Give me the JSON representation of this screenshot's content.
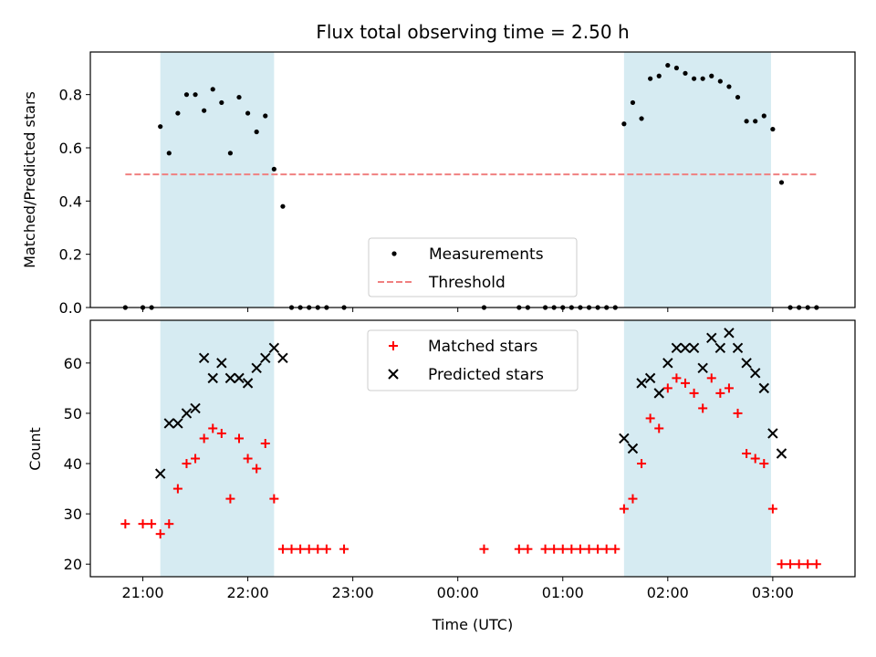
{
  "chart_data": [
    {
      "type": "scatter",
      "title": "Flux total observing time = 2.50 h",
      "xlabel": "",
      "ylabel": "Matched/Predicted stars",
      "xlim": [
        "20:30",
        "03:47"
      ],
      "ylim": [
        0,
        0.96
      ],
      "yticks": [
        0.0,
        0.2,
        0.4,
        0.6,
        0.8
      ],
      "ytick_labels": [
        "0.0",
        "0.2",
        "0.4",
        "0.6",
        "0.8"
      ],
      "legend_position": "lower-center",
      "shaded_intervals": [
        [
          "21:10",
          "22:15"
        ],
        [
          "01:35",
          "02:59"
        ]
      ],
      "shade_color": "#add8e6",
      "series": [
        {
          "name": "Measurements",
          "marker": "dot",
          "color": "#000000",
          "x": [
            "20:50",
            "21:00",
            "21:05",
            "21:10",
            "21:15",
            "21:20",
            "21:25",
            "21:30",
            "21:35",
            "21:40",
            "21:45",
            "21:50",
            "21:55",
            "22:00",
            "22:05",
            "22:10",
            "22:15",
            "22:20",
            "22:25",
            "22:30",
            "22:35",
            "22:40",
            "22:45",
            "22:55",
            "00:15",
            "00:35",
            "00:40",
            "00:50",
            "00:55",
            "01:00",
            "01:05",
            "01:10",
            "01:15",
            "01:20",
            "01:25",
            "01:30",
            "01:35",
            "01:40",
            "01:45",
            "01:50",
            "01:55",
            "02:00",
            "02:05",
            "02:10",
            "02:15",
            "02:20",
            "02:25",
            "02:30",
            "02:35",
            "02:40",
            "02:45",
            "02:50",
            "02:55",
            "03:00",
            "03:05",
            "03:10",
            "03:15",
            "03:20",
            "03:25"
          ],
          "y": [
            0,
            0,
            0,
            0.68,
            0.58,
            0.73,
            0.8,
            0.8,
            0.74,
            0.82,
            0.77,
            0.58,
            0.79,
            0.73,
            0.66,
            0.72,
            0.52,
            0.38,
            0,
            0,
            0,
            0,
            0,
            0,
            0,
            0,
            0,
            0,
            0,
            0,
            0,
            0,
            0,
            0,
            0,
            0,
            0.69,
            0.77,
            0.71,
            0.86,
            0.87,
            0.91,
            0.9,
            0.88,
            0.86,
            0.86,
            0.87,
            0.85,
            0.83,
            0.79,
            0.7,
            0.7,
            0.72,
            0.67,
            0.47,
            0,
            0,
            0,
            0
          ]
        },
        {
          "name": "Threshold",
          "style": "dashed",
          "color": "#f08080",
          "x": [
            "20:50",
            "03:25"
          ],
          "y": [
            0.5,
            0.5
          ]
        }
      ]
    },
    {
      "type": "scatter",
      "title": "",
      "xlabel": "Time (UTC)",
      "ylabel": "Count",
      "xlim": [
        "20:30",
        "03:47"
      ],
      "ylim": [
        17.5,
        68.5
      ],
      "yticks": [
        20,
        30,
        40,
        50,
        60
      ],
      "ytick_labels": [
        "20",
        "30",
        "40",
        "50",
        "60"
      ],
      "xticks": [
        "21:00",
        "22:00",
        "23:00",
        "00:00",
        "01:00",
        "02:00",
        "03:00"
      ],
      "xtick_labels": [
        "21:00",
        "22:00",
        "23:00",
        "00:00",
        "01:00",
        "02:00",
        "03:00"
      ],
      "legend_position": "upper-center",
      "shaded_intervals": [
        [
          "21:10",
          "22:15"
        ],
        [
          "01:35",
          "02:59"
        ]
      ],
      "shade_color": "#add8e6",
      "series": [
        {
          "name": "Matched stars",
          "marker": "plus",
          "color": "#ff0000",
          "x": [
            "20:50",
            "21:00",
            "21:05",
            "21:10",
            "21:15",
            "21:20",
            "21:25",
            "21:30",
            "21:35",
            "21:40",
            "21:45",
            "21:50",
            "21:55",
            "22:00",
            "22:05",
            "22:10",
            "22:15",
            "22:20",
            "22:25",
            "22:30",
            "22:35",
            "22:40",
            "22:45",
            "22:55",
            "00:15",
            "00:35",
            "00:40",
            "00:50",
            "00:55",
            "01:00",
            "01:05",
            "01:10",
            "01:15",
            "01:20",
            "01:25",
            "01:30",
            "01:35",
            "01:40",
            "01:45",
            "01:50",
            "01:55",
            "02:00",
            "02:05",
            "02:10",
            "02:15",
            "02:20",
            "02:25",
            "02:30",
            "02:35",
            "02:40",
            "02:45",
            "02:50",
            "02:55",
            "03:00",
            "03:05",
            "03:10",
            "03:15",
            "03:20",
            "03:25"
          ],
          "y": [
            28,
            28,
            28,
            26,
            28,
            35,
            40,
            41,
            45,
            47,
            46,
            33,
            45,
            41,
            39,
            44,
            33,
            23,
            23,
            23,
            23,
            23,
            23,
            23,
            23,
            23,
            23,
            23,
            23,
            23,
            23,
            23,
            23,
            23,
            23,
            23,
            31,
            33,
            40,
            49,
            47,
            55,
            57,
            56,
            54,
            51,
            57,
            54,
            55,
            50,
            42,
            41,
            40,
            31,
            20,
            20,
            20,
            20,
            20
          ]
        },
        {
          "name": "Predicted stars",
          "marker": "x",
          "color": "#000000",
          "x": [
            "21:10",
            "21:15",
            "21:20",
            "21:25",
            "21:30",
            "21:35",
            "21:40",
            "21:45",
            "21:50",
            "21:55",
            "22:00",
            "22:05",
            "22:10",
            "22:15",
            "22:20",
            "01:35",
            "01:40",
            "01:45",
            "01:50",
            "01:55",
            "02:00",
            "02:05",
            "02:10",
            "02:15",
            "02:20",
            "02:25",
            "02:30",
            "02:35",
            "02:40",
            "02:45",
            "02:50",
            "02:55",
            "03:00",
            "03:05"
          ],
          "y": [
            38,
            48,
            48,
            50,
            51,
            61,
            57,
            60,
            57,
            57,
            56,
            59,
            61,
            63,
            61,
            45,
            43,
            56,
            57,
            54,
            60,
            63,
            63,
            63,
            59,
            65,
            63,
            66,
            63,
            60,
            58,
            55,
            46,
            42
          ]
        }
      ]
    }
  ]
}
